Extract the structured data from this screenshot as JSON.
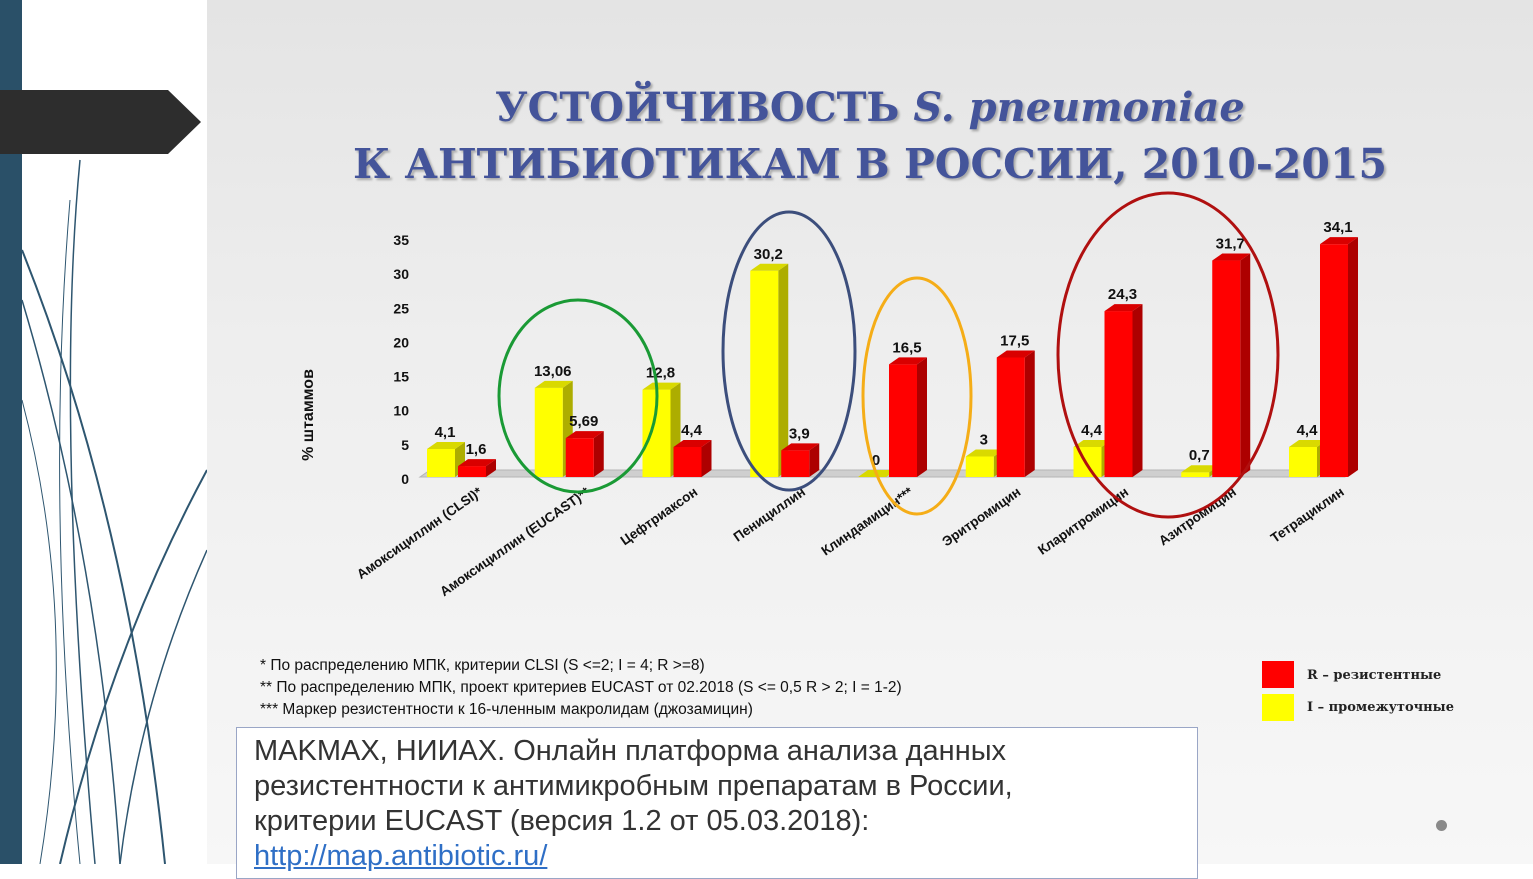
{
  "title": {
    "line1_prefix": "УСТОЙЧИВОСТЬ",
    "line1_italic": "S. pneumoniae",
    "line2": "К АНТИБИОТИКАМ В РОССИИ, 2010-2015"
  },
  "chart_data": {
    "type": "bar",
    "categories": [
      "Амоксициллин (CLSI)*",
      "Амоксициллин (EUCAST)**",
      "Цефтриаксон",
      "Пенициллин",
      "Клиндамицин***",
      "Эритромицин",
      "Кларитромицин",
      "Азитромицин",
      "Тетрациклин"
    ],
    "series": [
      {
        "key": "I",
        "name": "I – промежуточные",
        "color": "#ffff00",
        "values": [
          4.1,
          13.06,
          12.8,
          30.2,
          0,
          3,
          4.4,
          0.7,
          4.4
        ],
        "labels": [
          "4,1",
          "13,06",
          "12,8",
          "30,2",
          "0",
          "3",
          "4,4",
          "0,7",
          "4,4"
        ]
      },
      {
        "key": "R",
        "name": "R – резистентные",
        "color": "#ff0000",
        "values": [
          1.6,
          5.69,
          4.4,
          3.9,
          16.5,
          17.5,
          24.3,
          31.7,
          34.1
        ],
        "labels": [
          "1,6",
          "5,69",
          "4,4",
          "3,9",
          "16,5",
          "17,5",
          "24,3",
          "31,7",
          "34,1"
        ]
      }
    ],
    "y_ticks": [
      "0",
      "5",
      "10",
      "15",
      "20",
      "25",
      "30",
      "35"
    ],
    "ylim": [
      0,
      35
    ],
    "ylabel": "% штаммов",
    "xlabel": "",
    "grid": false,
    "legend": "bottom-right"
  },
  "highlights": [
    {
      "name": "highlight-amoxicillin-eucast",
      "color": "#1a9a35"
    },
    {
      "name": "highlight-penicillin",
      "color": "#3c4e7c"
    },
    {
      "name": "highlight-clindamycin",
      "color": "#f5ad17"
    },
    {
      "name": "highlight-macrolides",
      "color": "#b01010"
    }
  ],
  "footnotes": [
    "* По распределению МПК, критерии CLSI (S <=2; I = 4; R >=8)",
    "** По распределению МПК, проект критериев EUCAST от 02.2018 (S <= 0,5 R > 2; I = 1-2)",
    "*** Маркер резистентности к 16-членным макролидам (джозамицин)"
  ],
  "legend": {
    "r_label": "R – резистентные",
    "i_label": "I – промежуточные",
    "r_color": "#ff0000",
    "i_color": "#ffff00"
  },
  "citation": {
    "line1": "MAKMAX, НИИАХ. Онлайн платформа анализа данных",
    "line2": "резистентности к антимикробным препаратам в России,",
    "line3": "критерии EUCAST (версия 1.2 от 05.03.2018):",
    "link": "http://map.antibiotic.ru/"
  }
}
